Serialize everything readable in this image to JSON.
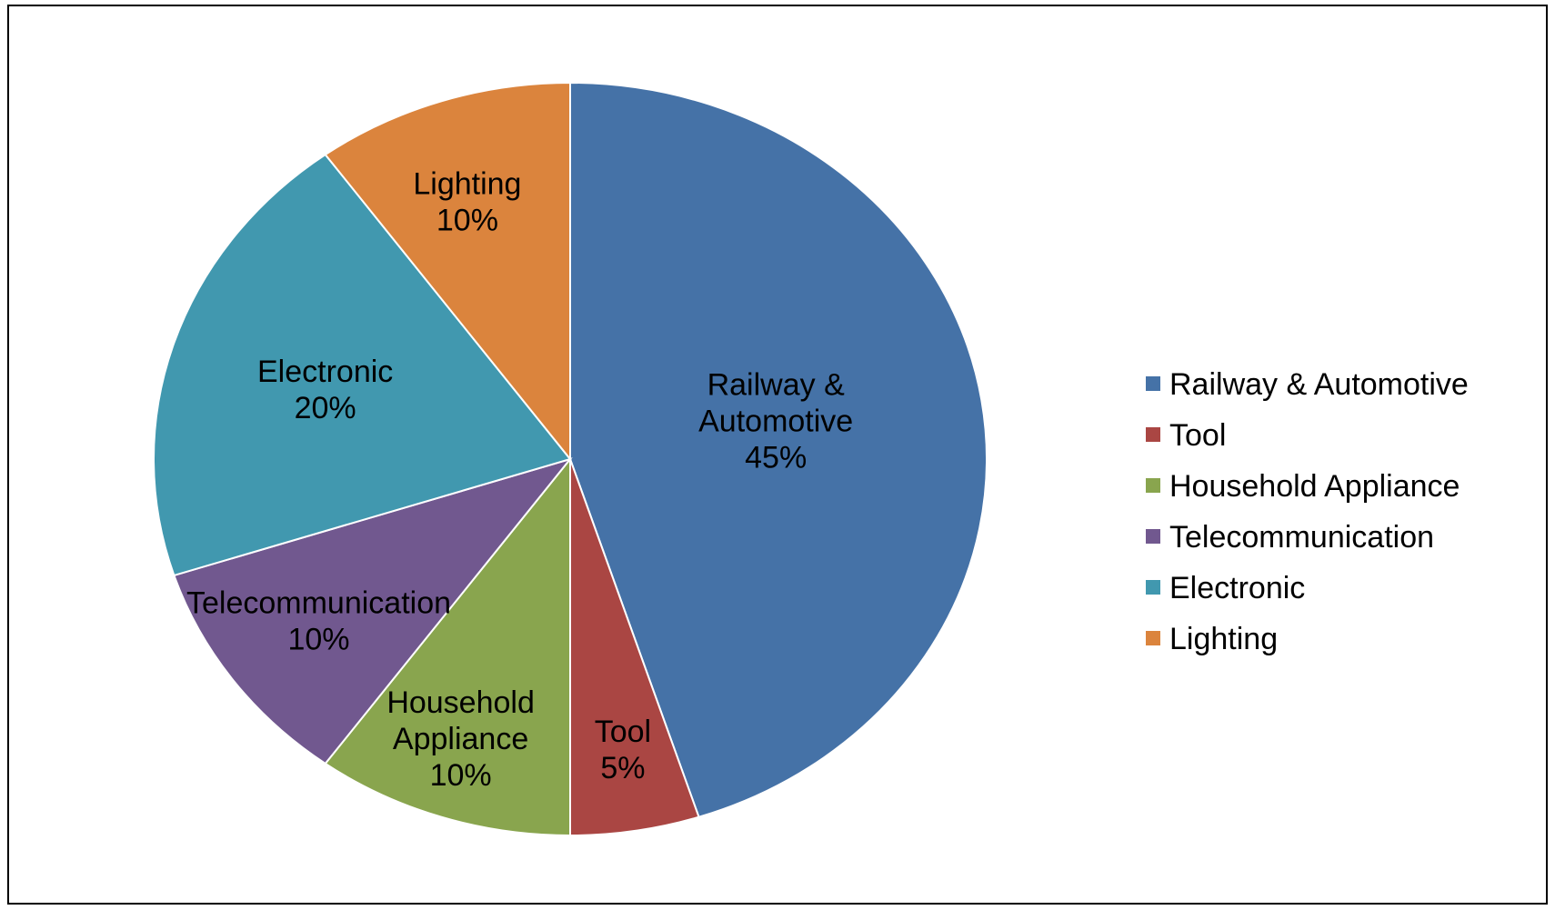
{
  "chart_data": {
    "type": "pie",
    "title": "",
    "categories": [
      "Railway & Automotive",
      "Tool",
      "Household Appliance",
      "Telecommunication",
      "Electronic",
      "Lighting"
    ],
    "values": [
      45,
      5,
      10,
      10,
      20,
      10
    ],
    "unit": "%",
    "slice_labels": [
      [
        "Railway &",
        "Automotive",
        "45%"
      ],
      [
        "Tool",
        "5%"
      ],
      [
        "Household",
        "Appliance",
        "10%"
      ],
      [
        "Telecommunication",
        "10%"
      ],
      [
        "Electronic",
        "20%"
      ],
      [
        "Lighting",
        "10%"
      ]
    ],
    "colors": [
      "#4572A7",
      "#AA4643",
      "#89A54E",
      "#71588F",
      "#4198AF",
      "#DB843D"
    ],
    "start_angle": "12 o'clock",
    "direction": "clockwise",
    "legend_position": "right"
  }
}
